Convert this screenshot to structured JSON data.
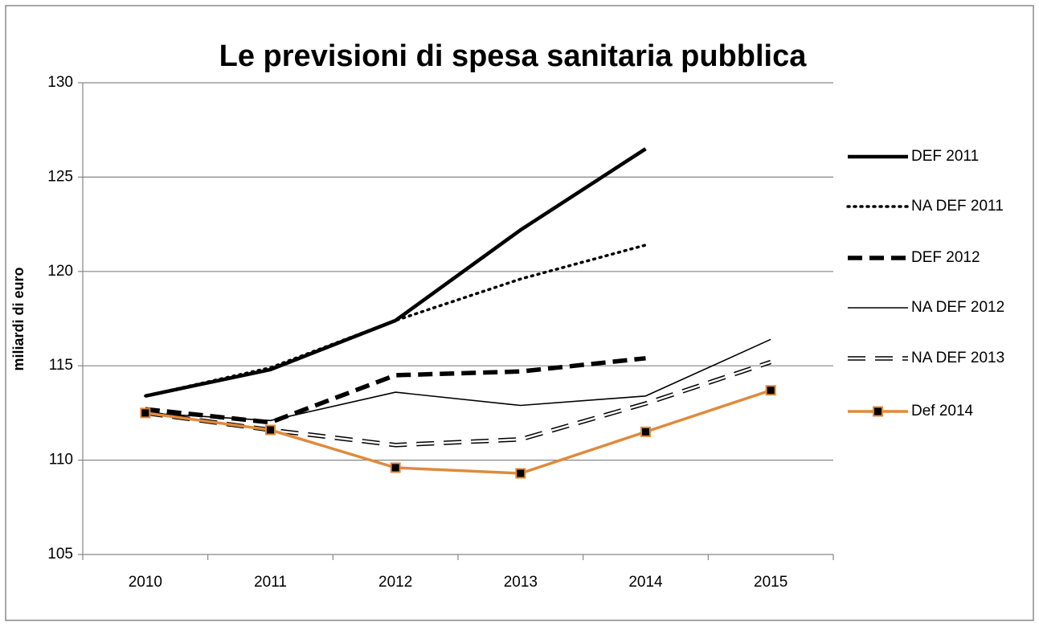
{
  "chart_data": {
    "type": "line",
    "title": "Le previsioni di spesa sanitaria pubblica",
    "y_label": "miliardi di euro",
    "categories": [
      "2010",
      "2011",
      "2012",
      "2013",
      "2014",
      "2015"
    ],
    "ylim": [
      105,
      130
    ],
    "yticks": [
      105,
      110,
      115,
      120,
      125,
      130
    ],
    "grid": true,
    "legend": "right",
    "series": [
      {
        "name": "DEF 2011",
        "color": "#000000",
        "line_style": "thick",
        "values": [
          113.4,
          114.8,
          117.4,
          122.2,
          126.5,
          null
        ]
      },
      {
        "name": "NA DEF 2011",
        "color": "#000000",
        "line_style": "dotted",
        "values": [
          113.4,
          114.9,
          117.4,
          119.6,
          121.4,
          null
        ]
      },
      {
        "name": "DEF 2012",
        "color": "#000000",
        "line_style": "dashed",
        "values": [
          112.7,
          112.0,
          114.5,
          114.7,
          115.4,
          null
        ]
      },
      {
        "name": "NA DEF 2012",
        "color": "#000000",
        "line_style": "thin",
        "values": [
          112.5,
          112.1,
          113.6,
          112.9,
          113.4,
          116.4
        ]
      },
      {
        "name": "NA DEF 2013",
        "color": "#000000",
        "line_style": "double-dashed",
        "values": [
          112.5,
          111.6,
          110.8,
          111.1,
          113.0,
          115.2
        ]
      },
      {
        "name": "Def 2014",
        "color": "#e08a3c",
        "line_style": "solid",
        "marker": "square",
        "values": [
          112.5,
          111.6,
          109.6,
          109.3,
          111.5,
          113.7
        ]
      }
    ]
  }
}
